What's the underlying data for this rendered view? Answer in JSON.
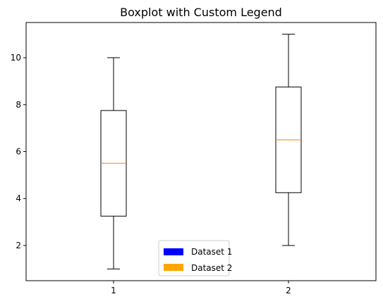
{
  "chart_data": {
    "type": "boxplot",
    "title": "Boxplot with Custom Legend",
    "xlabel": "",
    "ylabel": "",
    "categories": [
      "1",
      "2"
    ],
    "ylim": [
      0.5,
      11.5
    ],
    "yticks": [
      2,
      4,
      6,
      8,
      10
    ],
    "grid": false,
    "boxes": [
      {
        "category": "1",
        "whisker_low": 1,
        "q1": 3.25,
        "median": 5.5,
        "q3": 7.75,
        "whisker_high": 10
      },
      {
        "category": "2",
        "whisker_low": 2,
        "q1": 4.25,
        "median": 6.5,
        "q3": 8.75,
        "whisker_high": 11
      }
    ],
    "legend": {
      "placement": "lower-center",
      "items": [
        {
          "label": "Dataset 1",
          "color": "#0000ff"
        },
        {
          "label": "Dataset 2",
          "color": "#ffa500"
        }
      ]
    },
    "colors": {
      "box": "#000000",
      "median": "#ff7f0e",
      "axes": "#000000",
      "background": "#ffffff"
    }
  }
}
